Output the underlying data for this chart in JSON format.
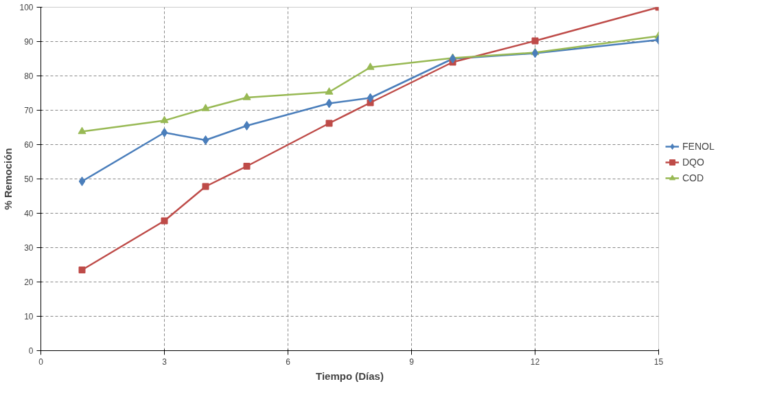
{
  "chart_data": {
    "type": "line",
    "xlabel": "Tiempo (Días)",
    "ylabel": "% Remoción",
    "xlim": [
      0,
      15
    ],
    "xticks": [
      0,
      3,
      6,
      9,
      12,
      15
    ],
    "ylim": [
      0,
      100
    ],
    "yticks": [
      0,
      10,
      20,
      30,
      40,
      50,
      60,
      70,
      80,
      90,
      100
    ],
    "grid": true,
    "legend": "right",
    "line_style": "solid",
    "x": [
      1,
      3,
      4,
      5,
      7,
      8,
      10,
      12,
      15
    ],
    "series": [
      {
        "name": "FENOL",
        "color": "#4a7ebb",
        "marker": "diamond",
        "values": [
          49.3,
          63.5,
          61.3,
          65.5,
          72,
          73.6,
          85,
          86.6,
          90.5
        ]
      },
      {
        "name": "DQO",
        "color": "#be4b48",
        "marker": "square",
        "values": [
          23.5,
          37.8,
          47.8,
          53.7,
          66.2,
          72.2,
          84,
          90.2,
          100
        ]
      },
      {
        "name": "COD",
        "color": "#98b954",
        "marker": "triangle",
        "values": [
          63.8,
          67,
          70.5,
          73.7,
          75.3,
          82.5,
          85.2,
          86.8,
          91.6
        ]
      }
    ]
  }
}
